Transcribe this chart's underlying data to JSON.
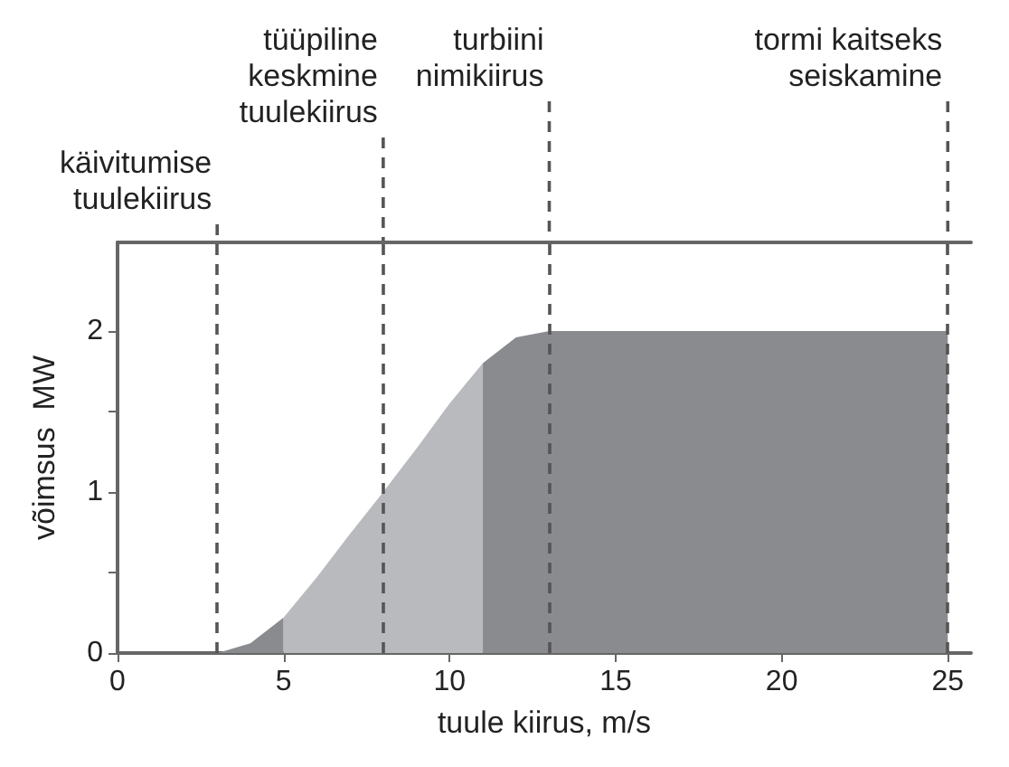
{
  "chart_data": {
    "type": "area",
    "xlabel": "tuule kiirus, m/s",
    "ylabel": "võimsus  MW",
    "series": [
      {
        "color": "#8a8b8f",
        "x": [
          3,
          4,
          5
        ],
        "values": [
          0,
          0.06,
          0.22
        ]
      },
      {
        "color": "#b9babd",
        "x": [
          5,
          6,
          7,
          8,
          9,
          10,
          11
        ],
        "values": [
          0.22,
          0.47,
          0.74,
          1.0,
          1.27,
          1.55,
          1.8
        ]
      },
      {
        "color": "#8a8b8f",
        "x": [
          11,
          12,
          13,
          25
        ],
        "values": [
          1.8,
          1.96,
          2.0,
          2.0
        ]
      }
    ],
    "xlim": [
      0,
      25.7
    ],
    "xticks": [
      0,
      5,
      10,
      15,
      20,
      25
    ],
    "ylim": [
      0,
      2.55
    ],
    "yticks": [
      0,
      {
        "value": 0.5,
        "label": null
      },
      1,
      {
        "value": 1.5,
        "label": null
      },
      2
    ],
    "grid": false,
    "ref_lines": [
      {
        "axis": "x",
        "value": 3,
        "label": "käivitumise\ntuulekiirus",
        "line_style": "dashed",
        "color": "#555555"
      },
      {
        "axis": "x",
        "value": 8,
        "label": "tüüpiline\nkeskmine\ntuulekiirus",
        "line_style": "dashed",
        "color": "#555555"
      },
      {
        "axis": "x",
        "value": 13,
        "label": "turbiini\nnimikiirus",
        "line_style": "dashed",
        "color": "#555555"
      },
      {
        "axis": "x",
        "value": 25,
        "label": "tormi kaitseks\nseiskamine",
        "line_style": "dashed",
        "color": "#555555"
      }
    ]
  }
}
